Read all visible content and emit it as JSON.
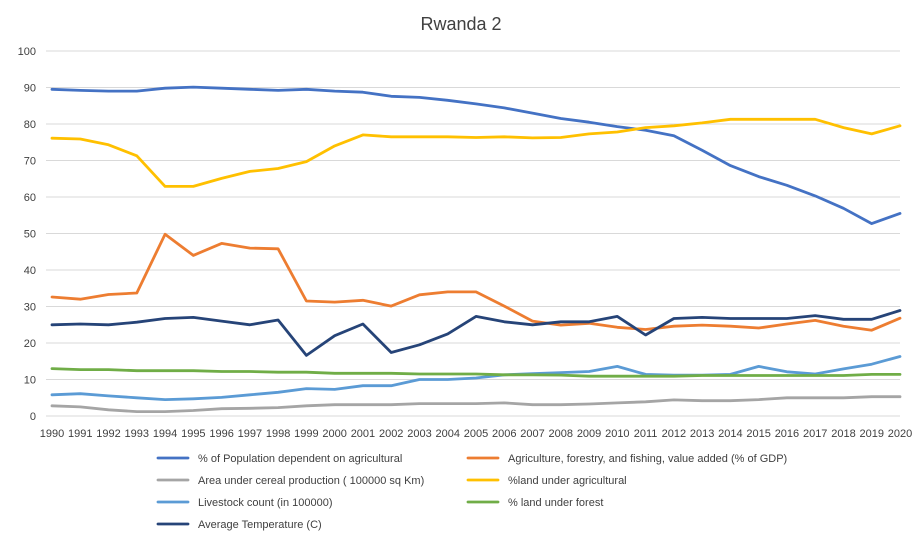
{
  "chart_data": {
    "type": "line",
    "title": "Rwanda 2",
    "xlabel": "",
    "ylabel": "",
    "ylim": [
      0,
      100
    ],
    "yticks": [
      "0",
      "10",
      "20",
      "30",
      "40",
      "50",
      "60",
      "70",
      "80",
      "90",
      "100"
    ],
    "grid": true,
    "legend_position": "bottom",
    "categories": [
      "1990",
      "1991",
      "1992",
      "1993",
      "1994",
      "1995",
      "1996",
      "1997",
      "1998",
      "1999",
      "2000",
      "2001",
      "2002",
      "2003",
      "2004",
      "2005",
      "2006",
      "2007",
      "2008",
      "2009",
      "2010",
      "2011",
      "2012",
      "2013",
      "2014",
      "2015",
      "2016",
      "2017",
      "2018",
      "2019",
      "2020"
    ],
    "series": [
      {
        "name": "% of Population dependent on agricultural",
        "color": "#4472c4",
        "values": [
          89.5,
          89.2,
          89,
          89,
          89.8,
          90.1,
          89.8,
          89.5,
          89.2,
          89.5,
          89,
          88.7,
          87.6,
          87.3,
          86.5,
          85.5,
          84.4,
          83,
          81.5,
          80.5,
          79.3,
          78.3,
          76.8,
          72.8,
          68.6,
          65.6,
          63.2,
          60.3,
          56.9,
          52.7,
          55.5
        ]
      },
      {
        "name": "Agriculture, forestry, and fishing, value added (% of GDP)",
        "color": "#ed7d31",
        "values": [
          32.6,
          32,
          33.3,
          33.7,
          49.8,
          44,
          47.3,
          46,
          45.8,
          31.5,
          31.2,
          31.7,
          30.1,
          33.2,
          34,
          34,
          30.1,
          26,
          24.9,
          25.4,
          24.3,
          23.7,
          24.6,
          24.9,
          24.6,
          24.1,
          25.2,
          26.2,
          24.6,
          23.5,
          26.8
        ]
      },
      {
        "name": "Area under cereal production ( 100000 sq Km)",
        "color": "#a5a5a5",
        "values": [
          2.8,
          2.5,
          1.7,
          1.2,
          1.2,
          1.5,
          2,
          2.1,
          2.3,
          2.8,
          3.1,
          3.1,
          3.1,
          3.4,
          3.4,
          3.4,
          3.6,
          3.1,
          3.1,
          3.3,
          3.6,
          3.9,
          4.4,
          4.2,
          4.2,
          4.5,
          5,
          5,
          5,
          5.3,
          5.3
        ]
      },
      {
        "name": "%land under agricultural",
        "color": "#ffc000",
        "values": [
          76.1,
          75.9,
          74.3,
          71.3,
          62.9,
          62.9,
          65.1,
          67,
          67.8,
          69.7,
          74,
          77,
          76.5,
          76.5,
          76.5,
          76.3,
          76.5,
          76.2,
          76.3,
          77.3,
          77.8,
          79,
          79.5,
          80.3,
          81.3,
          81.3,
          81.3,
          81.3,
          79,
          77.3,
          79.5
        ]
      },
      {
        "name": "Livestock count (in 100000)",
        "color": "#5b9bd5",
        "values": [
          5.8,
          6.1,
          5.5,
          5,
          4.5,
          4.7,
          5.1,
          5.8,
          6.5,
          7.5,
          7.3,
          8.3,
          8.3,
          10,
          10,
          10.4,
          11.3,
          11.6,
          11.9,
          12.2,
          13.6,
          11.4,
          11.2,
          11.2,
          11.4,
          13.6,
          12.1,
          11.5,
          12.9,
          14.2,
          16.3
        ]
      },
      {
        "name": "% land under forest",
        "color": "#70ad47",
        "values": [
          13,
          12.7,
          12.7,
          12.4,
          12.4,
          12.4,
          12.2,
          12.2,
          12,
          12,
          11.7,
          11.7,
          11.7,
          11.5,
          11.5,
          11.5,
          11.3,
          11.3,
          11.2,
          10.9,
          10.9,
          10.9,
          10.9,
          11.1,
          11.1,
          11.1,
          11.1,
          11.1,
          11.1,
          11.4,
          11.4
        ]
      },
      {
        "name": "Average Temperature (C)",
        "color": "#264478",
        "values": [
          25,
          25.2,
          25,
          25.7,
          26.7,
          27,
          26,
          25,
          26.3,
          16.6,
          22,
          25.2,
          17.4,
          19.5,
          22.5,
          27.3,
          25.8,
          25,
          25.8,
          25.8,
          27.3,
          22.2,
          26.7,
          27,
          26.7,
          26.7,
          26.7,
          27.5,
          26.5,
          26.5,
          28.9
        ]
      }
    ]
  }
}
